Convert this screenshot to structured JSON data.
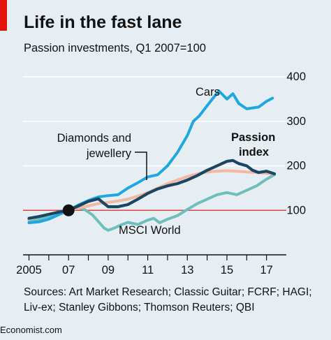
{
  "title": "Life in the fast lane",
  "subtitle": "Passion investments, Q1 2007=100",
  "sources": [
    "Sources: Art Market Research; Classic Guitar; FCRF; HAGI;",
    "Liv-ex; Stanley Gibbons; Thomson Reuters; QBI"
  ],
  "footer": "Economist.com",
  "colors": {
    "background": "#e7eef3",
    "brand_red": "#e3120b",
    "baseline_red": "#d9473f",
    "gridline": "#ffffff",
    "cars": "#1fa7e0",
    "msci_world": "#6dbfbb",
    "diamonds_jewellery": "#f2b8a2",
    "passion_index": "#1a4663"
  },
  "chart_data": {
    "type": "line",
    "x_ticks": [
      "2005",
      "07",
      "09",
      "11",
      "13",
      "15",
      "17"
    ],
    "x_tick_values": [
      2005,
      2007,
      2009,
      2011,
      2013,
      2015,
      2017
    ],
    "xlim": [
      2004.7,
      2018.0
    ],
    "ylim": [
      0,
      400
    ],
    "y_ticks": [
      100,
      200,
      300,
      400
    ],
    "y_tick_labels": [
      "100",
      "200",
      "300",
      "400"
    ],
    "grid": true,
    "baseline": 100,
    "reference_point": {
      "x": 2007.0,
      "y": 100
    },
    "annotations": {
      "cars": "Cars",
      "diamonds_line1": "Diamonds and",
      "diamonds_line2": "jewellery",
      "passion_line1": "Passion",
      "passion_line2": "index",
      "msci": "MSCI World"
    },
    "series": [
      {
        "name": "MSCI World",
        "key": "msci_world",
        "x": [
          2005.0,
          2005.5,
          2006.0,
          2006.5,
          2007.0,
          2007.5,
          2007.8,
          2008.2,
          2008.5,
          2008.8,
          2009.0,
          2009.3,
          2009.7,
          2010.0,
          2010.5,
          2011.0,
          2011.3,
          2011.6,
          2012.0,
          2012.5,
          2013.0,
          2013.5,
          2014.0,
          2014.5,
          2015.0,
          2015.5,
          2016.0,
          2016.5,
          2017.0,
          2017.4
        ],
        "y": [
          77,
          80,
          86,
          93,
          100,
          106,
          102,
          90,
          75,
          60,
          55,
          60,
          68,
          73,
          68,
          78,
          82,
          72,
          80,
          88,
          102,
          115,
          125,
          135,
          140,
          135,
          145,
          155,
          170,
          180
        ]
      },
      {
        "name": "Diamonds and jewellery",
        "key": "diamonds_jewellery",
        "x": [
          2005.0,
          2005.5,
          2006.0,
          2006.5,
          2007.0,
          2007.5,
          2008.0,
          2008.5,
          2009.0,
          2009.5,
          2010.0,
          2010.5,
          2011.0,
          2011.5,
          2012.0,
          2012.5,
          2013.0,
          2013.5,
          2014.0,
          2014.5,
          2015.0,
          2015.5,
          2016.0,
          2016.5,
          2017.0,
          2017.4
        ],
        "y": [
          80,
          86,
          91,
          95,
          100,
          105,
          110,
          115,
          118,
          121,
          125,
          132,
          140,
          150,
          160,
          168,
          176,
          182,
          186,
          188,
          189,
          188,
          186,
          185,
          183,
          182
        ]
      },
      {
        "name": "Cars",
        "key": "cars",
        "x": [
          2005.0,
          2005.5,
          2006.0,
          2006.5,
          2007.0,
          2007.5,
          2008.0,
          2008.5,
          2009.0,
          2009.5,
          2010.0,
          2010.5,
          2011.0,
          2011.5,
          2012.0,
          2012.5,
          2013.0,
          2013.3,
          2013.6,
          2014.0,
          2014.3,
          2014.6,
          2015.0,
          2015.3,
          2015.6,
          2016.0,
          2016.3,
          2016.6,
          2017.0,
          2017.3
        ],
        "y": [
          72,
          74,
          80,
          90,
          100,
          112,
          122,
          130,
          133,
          135,
          150,
          162,
          175,
          180,
          200,
          230,
          268,
          300,
          312,
          335,
          352,
          368,
          350,
          362,
          340,
          328,
          330,
          332,
          345,
          352
        ]
      },
      {
        "name": "Passion index",
        "key": "passion_index",
        "x": [
          2005.0,
          2005.5,
          2006.0,
          2006.5,
          2007.0,
          2007.5,
          2008.0,
          2008.5,
          2009.0,
          2009.5,
          2010.0,
          2010.5,
          2011.0,
          2011.5,
          2012.0,
          2012.5,
          2013.0,
          2013.5,
          2014.0,
          2014.5,
          2015.0,
          2015.3,
          2015.6,
          2016.0,
          2016.3,
          2016.6,
          2017.0,
          2017.4
        ],
        "y": [
          82,
          86,
          91,
          96,
          100,
          110,
          120,
          126,
          108,
          108,
          113,
          125,
          138,
          148,
          155,
          160,
          168,
          178,
          190,
          200,
          210,
          212,
          205,
          200,
          190,
          185,
          188,
          182
        ]
      }
    ]
  }
}
